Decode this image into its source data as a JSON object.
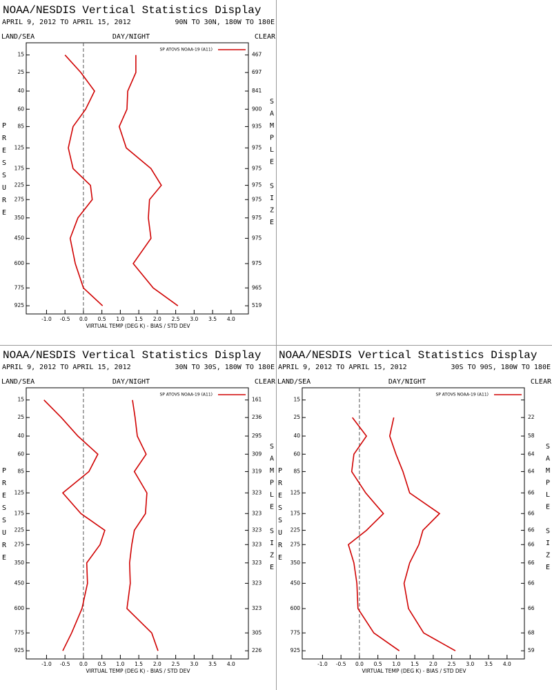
{
  "chart_data": [
    {
      "type": "line",
      "title": "NOAA/NESDIS Vertical Statistics Display",
      "subtitle": "APRIL 9, 2012 TO APRIL 15, 2012",
      "region": "90N TO 30N, 180W TO 180E",
      "labels": {
        "left": "LAND/SEA",
        "center": "DAY/NIGHT",
        "right": "CLEAR"
      },
      "ylabel": "PRESSURE",
      "y2label": "SAMPLE SIZE",
      "xlabel": "VIRTUAL TEMP (DEG K) - BIAS / STD DEV",
      "legend": "SP ATOVS NOAA-19 (A11)",
      "y": [
        15,
        25,
        40,
        60,
        85,
        125,
        175,
        225,
        275,
        350,
        450,
        600,
        775,
        925
      ],
      "yscale": "power",
      "yexponent": 0.286,
      "ylim": [
        1000,
        10
      ],
      "yticks": [
        15,
        25,
        40,
        60,
        85,
        125,
        175,
        225,
        275,
        350,
        450,
        600,
        775,
        925
      ],
      "xlim": [
        -1.55,
        4.47
      ],
      "xticks": [
        {
          "value": -1,
          "label": "-1.0"
        },
        -0.5,
        {
          "value": 0,
          "label": "0.0"
        },
        0.5,
        {
          "value": 1,
          "label": "1.0"
        },
        1.5,
        {
          "value": 2,
          "label": "2.0"
        },
        2.5,
        {
          "value": 3,
          "label": "3.0"
        },
        3.5,
        {
          "value": 4,
          "label": "4.0"
        }
      ],
      "series": [
        {
          "color": "#d00000",
          "values": [
            -0.5,
            -0.07,
            0.3,
            0.06,
            -0.28,
            -0.41,
            -0.28,
            0.19,
            0.24,
            -0.15,
            -0.36,
            -0.22,
            0.0,
            0.52
          ]
        },
        {
          "color": "#d00000",
          "values": [
            1.42,
            1.42,
            1.2,
            1.18,
            0.97,
            1.16,
            1.83,
            2.11,
            1.79,
            1.76,
            1.83,
            1.35,
            1.89,
            2.56
          ]
        }
      ],
      "sample_size": [
        467,
        697,
        841,
        900,
        935,
        975,
        975,
        975,
        975,
        975,
        975,
        975,
        965,
        519
      ]
    },
    {
      "type": "line",
      "title": "NOAA/NESDIS Vertical Statistics Display",
      "subtitle": "APRIL 9, 2012 TO APRIL 15, 2012",
      "region": "30N TO 30S, 180W TO 180E",
      "labels": {
        "left": "LAND/SEA",
        "center": "DAY/NIGHT",
        "right": "CLEAR"
      },
      "ylabel": "PRESSURE",
      "y2label": "SAMPLE SIZE",
      "xlabel": "VIRTUAL TEMP (DEG K) - BIAS / STD DEV",
      "legend": "SP ATOVS NOAA-19 (A11)",
      "y": [
        15,
        25,
        40,
        60,
        85,
        125,
        175,
        225,
        275,
        350,
        450,
        600,
        775,
        925
      ],
      "yscale": "power",
      "yexponent": 0.286,
      "ylim": [
        1000,
        10
      ],
      "yticks": [
        15,
        25,
        40,
        60,
        85,
        125,
        175,
        225,
        275,
        350,
        450,
        600,
        775,
        925
      ],
      "xlim": [
        -1.55,
        4.47
      ],
      "xticks": [
        {
          "value": -1,
          "label": "-1.0"
        },
        -0.5,
        {
          "value": 0,
          "label": "0.0"
        },
        0.5,
        {
          "value": 1,
          "label": "1.0"
        },
        1.5,
        {
          "value": 2,
          "label": "2.0"
        },
        2.5,
        {
          "value": 3,
          "label": "3.0"
        },
        3.5,
        {
          "value": 4,
          "label": "4.0"
        }
      ],
      "series": [
        {
          "color": "#d00000",
          "values": [
            -1.07,
            -0.6,
            -0.15,
            0.39,
            0.15,
            -0.56,
            -0.07,
            0.58,
            0.45,
            0.09,
            0.11,
            -0.04,
            -0.32,
            -0.56
          ]
        },
        {
          "color": "#d00000",
          "values": [
            1.33,
            1.4,
            1.46,
            1.7,
            1.38,
            1.72,
            1.68,
            1.38,
            1.31,
            1.25,
            1.27,
            1.18,
            1.85,
            2.02
          ]
        }
      ],
      "sample_size": [
        161,
        236,
        295,
        309,
        319,
        323,
        323,
        323,
        323,
        323,
        323,
        323,
        305,
        226
      ]
    },
    {
      "type": "line",
      "title": "NOAA/NESDIS Vertical Statistics Display",
      "subtitle": "APRIL 9, 2012 TO APRIL 15, 2012",
      "region": "30S TO 90S, 180W TO 180E",
      "labels": {
        "left": "LAND/SEA",
        "center": "DAY/NIGHT",
        "right": "CLEAR"
      },
      "ylabel": "PRESSURE",
      "y2label": "SAMPLE SIZE",
      "xlabel": "VIRTUAL TEMP (DEG K) - BIAS / STD DEV",
      "legend": "SP ATOVS NOAA-19 (A11)",
      "y": [
        15,
        25,
        40,
        60,
        85,
        125,
        175,
        225,
        275,
        350,
        450,
        600,
        775,
        925
      ],
      "yscale": "power",
      "yexponent": 0.286,
      "ylim": [
        1000,
        10
      ],
      "yticks": [
        15,
        25,
        40,
        60,
        85,
        125,
        175,
        225,
        275,
        350,
        450,
        600,
        775,
        925
      ],
      "xlim": [
        -1.55,
        4.47
      ],
      "xticks": [
        {
          "value": -1,
          "label": "-1.0"
        },
        -0.5,
        {
          "value": 0,
          "label": "0.0"
        },
        0.5,
        {
          "value": 1,
          "label": "1.0"
        },
        1.5,
        {
          "value": 2,
          "label": "2.0"
        },
        2.5,
        {
          "value": 3,
          "label": "3.0"
        },
        3.5,
        {
          "value": 4,
          "label": "4.0"
        }
      ],
      "series": [
        {
          "color": "#d00000",
          "values": [
            null,
            -0.19,
            0.19,
            -0.15,
            -0.21,
            0.17,
            0.65,
            0.19,
            -0.3,
            -0.15,
            -0.07,
            -0.04,
            0.39,
            1.08
          ]
        },
        {
          "color": "#d00000",
          "values": [
            null,
            0.93,
            0.82,
            0.99,
            1.18,
            1.36,
            2.17,
            1.72,
            1.61,
            1.36,
            1.21,
            1.33,
            1.74,
            2.6
          ]
        }
      ],
      "sample_size": [
        null,
        22,
        58,
        64,
        64,
        66,
        66,
        66,
        66,
        66,
        66,
        66,
        68,
        59
      ]
    }
  ]
}
